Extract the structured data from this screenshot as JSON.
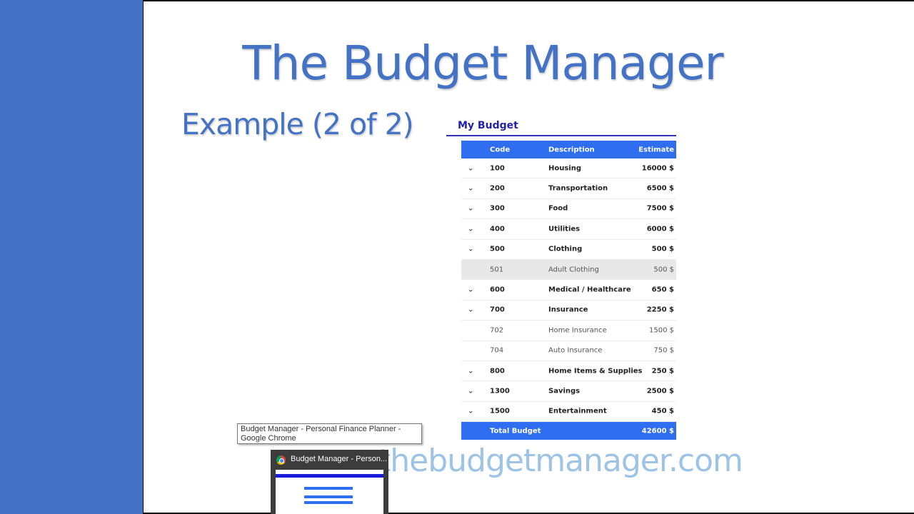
{
  "slide": {
    "title": "The Budget Manager",
    "subtitle": "Example (2 of 2)",
    "url": "thebudgetmanager.com",
    "accent_color": "#4472c4"
  },
  "budget": {
    "title": "My Budget",
    "header": {
      "code": "Code",
      "description": "Description",
      "estimate": "Estimate"
    },
    "rows": [
      {
        "code": "100",
        "description": "Housing",
        "estimate": "16000 $",
        "type": "category"
      },
      {
        "code": "200",
        "description": "Transportation",
        "estimate": "6500 $",
        "type": "category"
      },
      {
        "code": "300",
        "description": "Food",
        "estimate": "7500 $",
        "type": "category"
      },
      {
        "code": "400",
        "description": "Utilities",
        "estimate": "6000 $",
        "type": "category"
      },
      {
        "code": "500",
        "description": "Clothing",
        "estimate": "500 $",
        "type": "category"
      },
      {
        "code": "501",
        "description": "Adult Clothing",
        "estimate": "500 $",
        "type": "sub-highlight"
      },
      {
        "code": "600",
        "description": "Medical / Healthcare",
        "estimate": "650 $",
        "type": "category"
      },
      {
        "code": "700",
        "description": "Insurance",
        "estimate": "2250 $",
        "type": "category"
      },
      {
        "code": "702",
        "description": "Home Insurance",
        "estimate": "1500 $",
        "type": "sub"
      },
      {
        "code": "704",
        "description": "Auto Insurance",
        "estimate": "750 $",
        "type": "sub"
      },
      {
        "code": "800",
        "description": "Home Items & Supplies",
        "estimate": "250 $",
        "type": "category"
      },
      {
        "code": "1300",
        "description": "Savings",
        "estimate": "2500 $",
        "type": "category"
      },
      {
        "code": "1500",
        "description": "Entertainment",
        "estimate": "450 $",
        "type": "category"
      }
    ],
    "total": {
      "label": "Total Budget",
      "value": "42600 $"
    },
    "header_color": "#2f6ef0"
  },
  "taskbar": {
    "tooltip": "Budget Manager - Personal Finance Planner - Google Chrome",
    "thumbnail_title": "Budget Manager - Person...",
    "icon": "chrome-icon"
  }
}
